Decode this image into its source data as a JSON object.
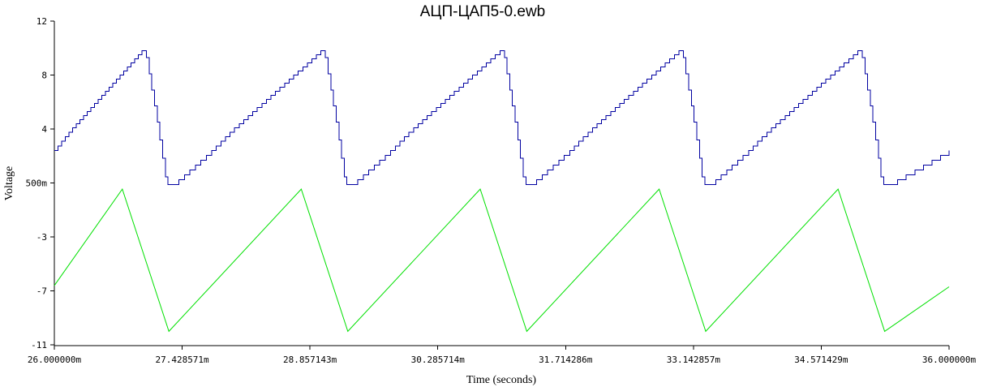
{
  "chart_data": {
    "type": "line",
    "title": "АЦП-ЦАП5-0.ewb",
    "xlabel": "Time (seconds)",
    "ylabel": "Voltage",
    "xlim": [
      0.026,
      0.036
    ],
    "ylim": [
      -11,
      12
    ],
    "x_tick_labels": [
      "26.000000m",
      "27.428571m",
      "28.857143m",
      "30.285714m",
      "31.714286m",
      "33.142857m",
      "34.571429m",
      "36.000000m"
    ],
    "y_ticks": [
      12,
      8,
      4,
      0.5,
      -3,
      -7,
      -11
    ],
    "y_tick_labels": [
      "12",
      "8",
      "4",
      "500m",
      "-3",
      "-7",
      "-11"
    ],
    "grid": false,
    "legend": "none",
    "series": [
      {
        "color": "#0000a0",
        "style": "step",
        "x": [
          0.026,
          0.02698,
          0.02703,
          0.02724,
          0.02727,
          0.02733,
          0.02776,
          0.02898,
          0.02903,
          0.02924,
          0.02927,
          0.02933,
          0.02976,
          0.03098,
          0.03103,
          0.03124,
          0.03127,
          0.03133,
          0.03176,
          0.03298,
          0.03303,
          0.03324,
          0.03327,
          0.03333,
          0.03376,
          0.03498,
          0.03503,
          0.03524,
          0.03527,
          0.03533,
          0.036
        ],
        "y": [
          2.6,
          9.8,
          9.3,
          0.9,
          0.4,
          0.4,
          2.6,
          9.8,
          9.3,
          0.9,
          0.4,
          0.4,
          2.6,
          9.8,
          9.3,
          0.9,
          0.4,
          0.4,
          2.6,
          9.8,
          9.3,
          0.9,
          0.4,
          0.4,
          2.6,
          9.8,
          9.3,
          0.9,
          0.4,
          0.4,
          2.6
        ]
      },
      {
        "color": "#00e000",
        "style": "line",
        "x": [
          0.026,
          0.02676,
          0.02728,
          0.02876,
          0.02928,
          0.03076,
          0.03128,
          0.03276,
          0.03328,
          0.03476,
          0.03528,
          0.036
        ],
        "y": [
          -6.6,
          0.1,
          -10.0,
          0.1,
          -10.0,
          0.1,
          -10.0,
          0.1,
          -10.0,
          0.1,
          -10.0,
          -6.7
        ]
      }
    ]
  }
}
